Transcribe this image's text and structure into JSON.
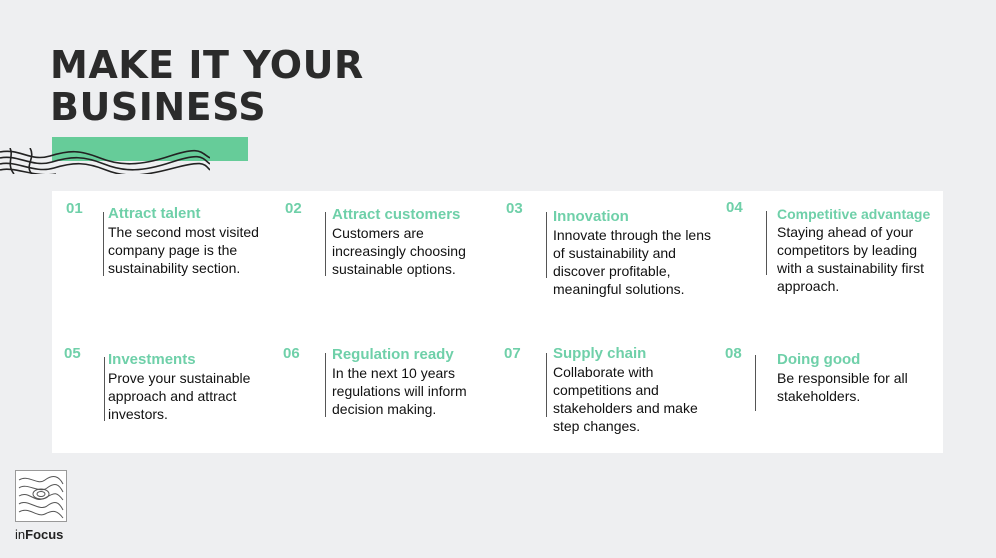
{
  "title": {
    "line1": "MAKE IT YOUR",
    "line2": "BUSINESS"
  },
  "accent_color": "#66cc99",
  "heading_color": "#6fd0a9",
  "items": [
    {
      "num": "01",
      "title": "Attract talent",
      "desc": "The second most visited company page is the sustainability section."
    },
    {
      "num": "02",
      "title": "Attract customers",
      "desc": "Customers are increasingly choosing sustainable options."
    },
    {
      "num": "03",
      "title": "Innovation",
      "desc": "Innovate through the lens of sustainability and discover profitable, meaningful solutions."
    },
    {
      "num": "04",
      "title": "Competitive advantage",
      "desc": "Staying ahead of your competitors by leading with a sustainability first approach."
    },
    {
      "num": "05",
      "title": "Investments",
      "desc": "Prove your sustainable approach and attract investors."
    },
    {
      "num": "06",
      "title": "Regulation ready",
      "desc": "In the next 10 years regulations will inform decision making."
    },
    {
      "num": "07",
      "title": "Supply chain",
      "desc": "Collaborate with competitions and stakeholders and make step changes."
    },
    {
      "num": "08",
      "title": "Doing good",
      "desc": "Be responsible for all stakeholders."
    }
  ],
  "brand": {
    "prefix": "in",
    "name": "Focus"
  },
  "icons": [
    "topographic-pattern-icon",
    "infocus-logo-icon"
  ]
}
